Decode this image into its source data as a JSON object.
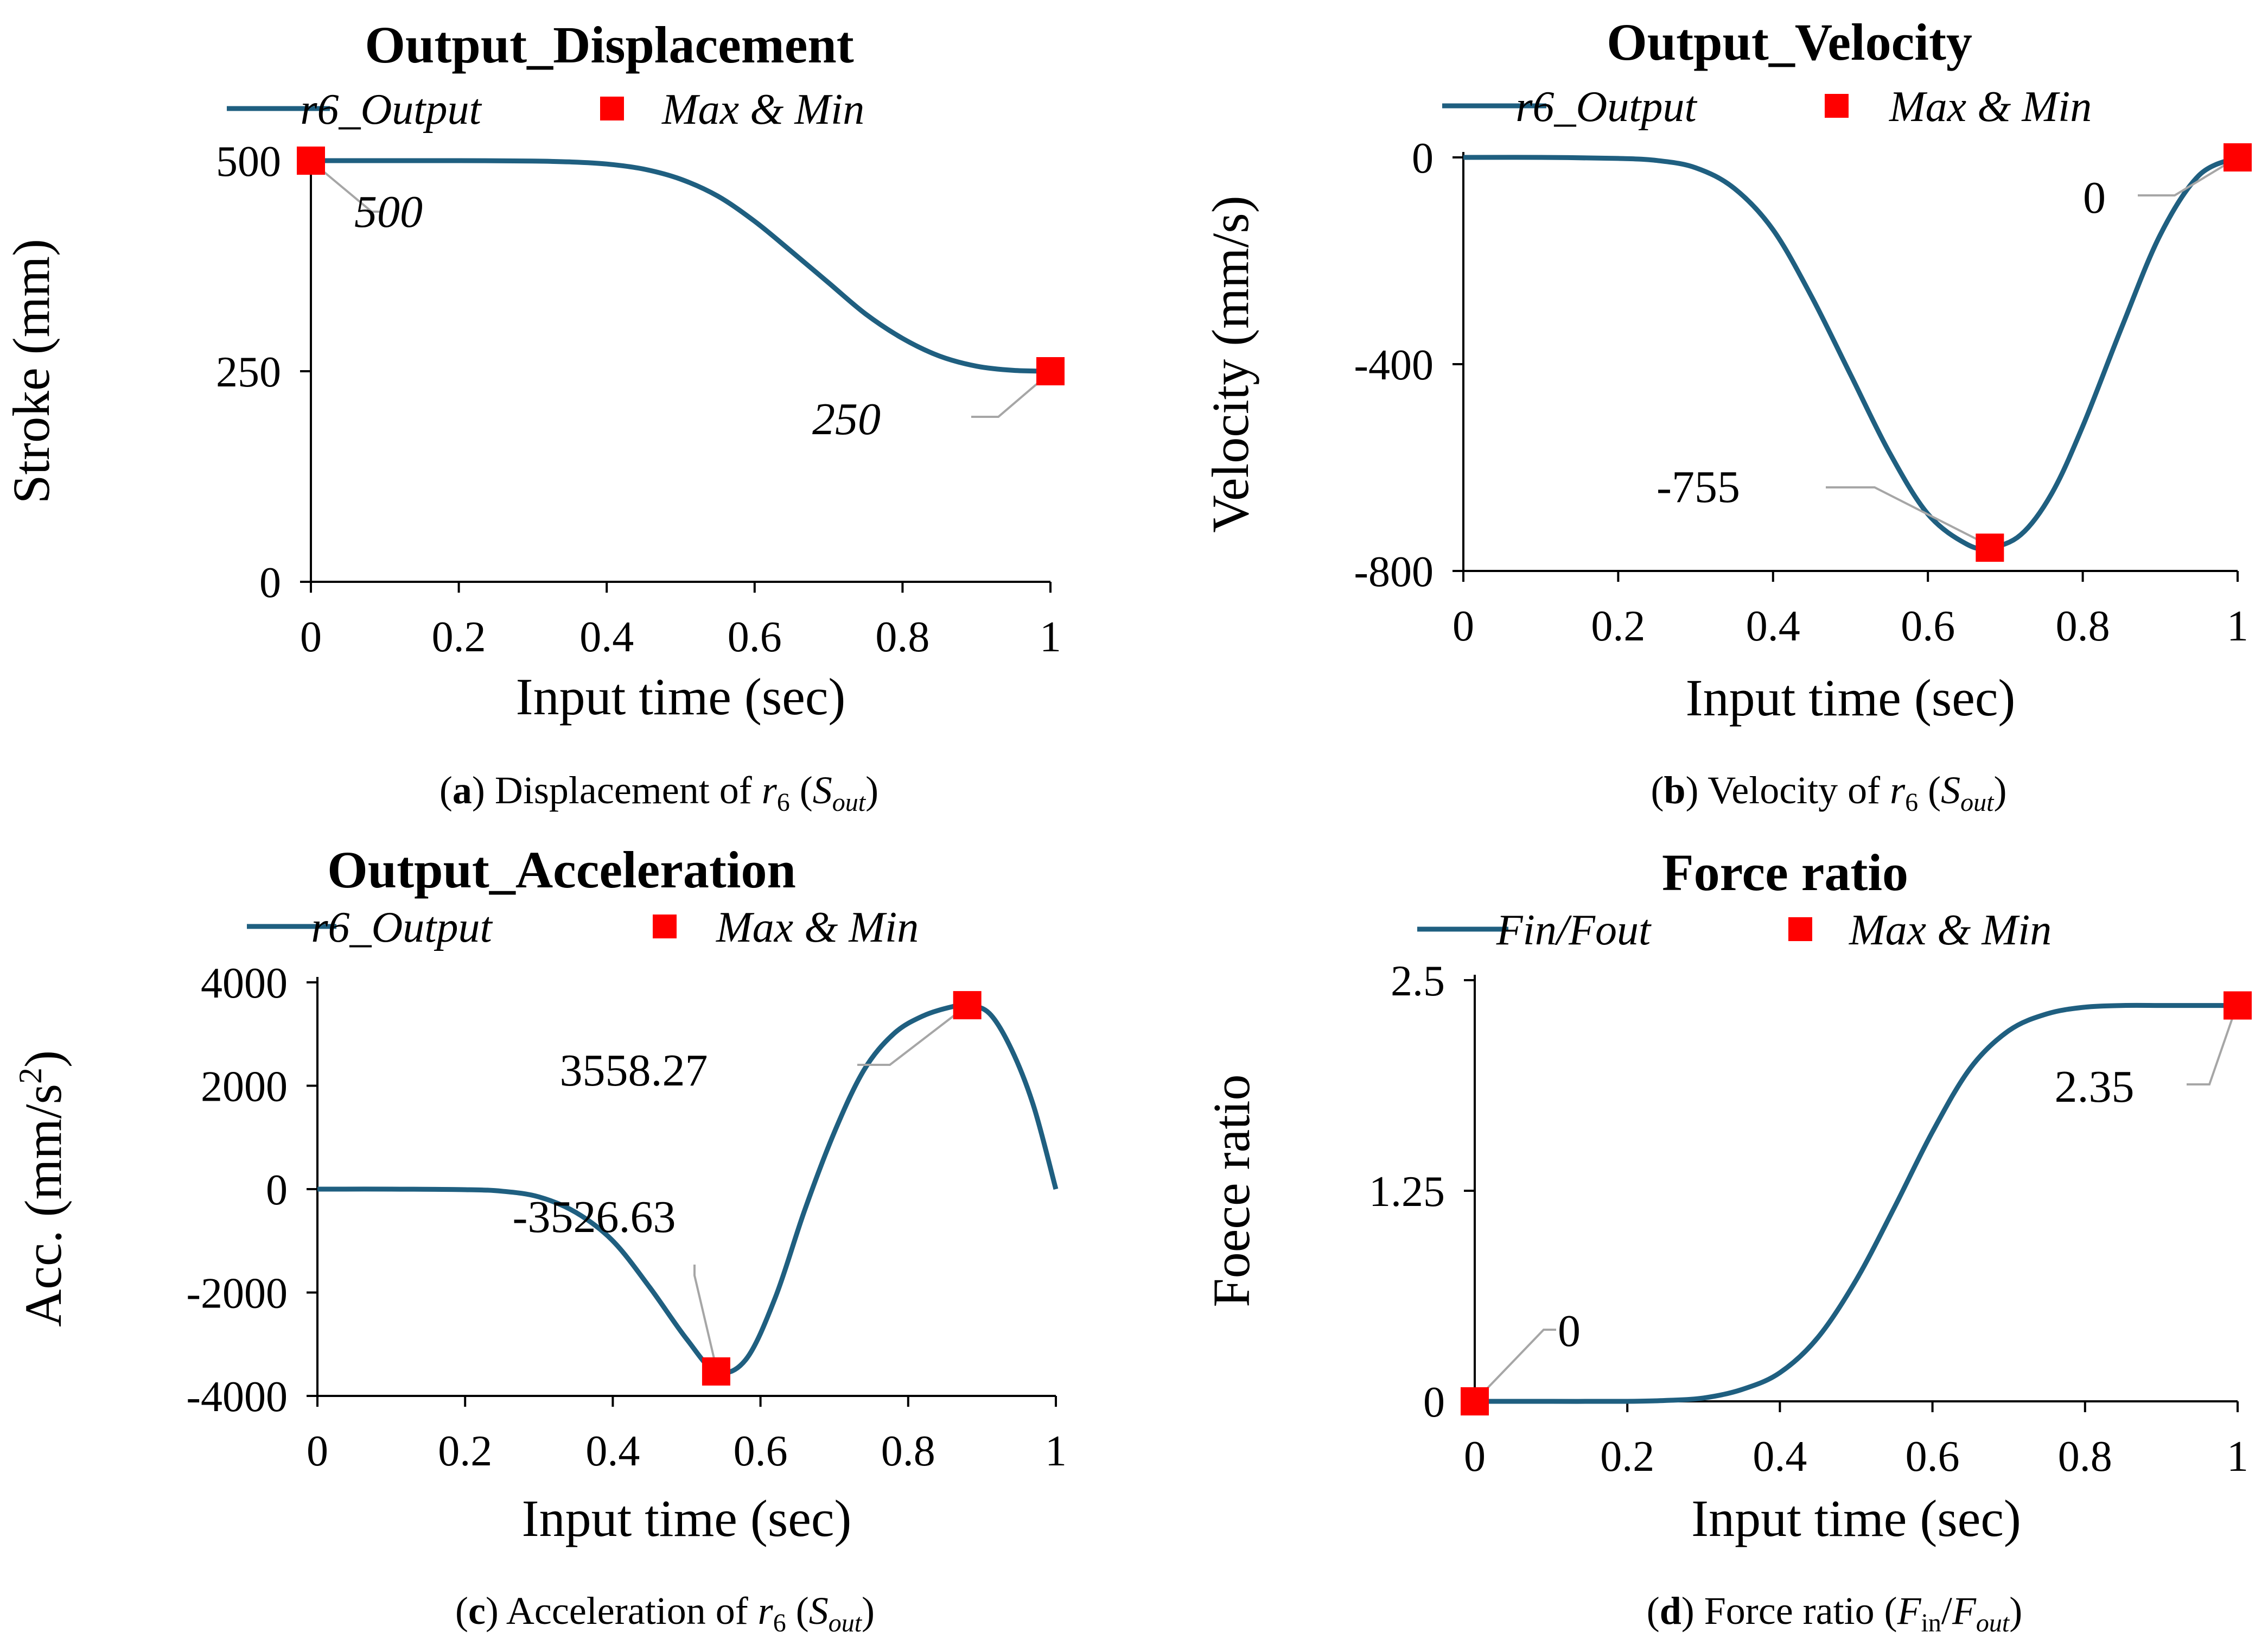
{
  "chart_data": [
    {
      "id": "a",
      "type": "line",
      "title": "Output_Displacement",
      "xlabel": "Input time (sec)",
      "ylabel": "Stroke (mm)",
      "xlim": [
        0,
        1
      ],
      "ylim": [
        0,
        500
      ],
      "xticks": [
        0,
        0.2,
        0.4,
        0.6,
        0.8,
        1
      ],
      "xtick_labels": [
        "0",
        "0.2",
        "0.4",
        "0.6",
        "0.8",
        "1"
      ],
      "yticks": [
        0,
        250,
        500
      ],
      "ytick_labels": [
        "0",
        "250",
        "500"
      ],
      "legend": [
        "r6_Output",
        "Max & Min"
      ],
      "series": [
        {
          "name": "r6_Output",
          "x": [
            0,
            0.1,
            0.2,
            0.3,
            0.35,
            0.4,
            0.45,
            0.5,
            0.55,
            0.6,
            0.65,
            0.7,
            0.75,
            0.8,
            0.85,
            0.9,
            0.95,
            1.0
          ],
          "values": [
            500,
            500,
            500,
            499.5,
            498.5,
            496,
            490,
            478,
            458,
            428,
            392,
            355,
            318,
            289,
            268,
            256,
            251,
            250
          ]
        }
      ],
      "markers": [
        {
          "x": 0,
          "y": 500,
          "label": "500"
        },
        {
          "x": 1,
          "y": 250,
          "label": "250"
        }
      ],
      "caption": {
        "letter": "a",
        "text": " Displacement of ",
        "var": "r",
        "sub": "6",
        "paren": "S",
        "paren_sub": "out"
      }
    },
    {
      "id": "b",
      "type": "line",
      "title": "Output_Velocity",
      "xlabel": "Input time (sec)",
      "ylabel": "Velocity (mm/s)",
      "xlim": [
        0,
        1
      ],
      "ylim": [
        -800,
        0
      ],
      "xticks": [
        0,
        0.2,
        0.4,
        0.6,
        0.8,
        1
      ],
      "xtick_labels": [
        "0",
        "0.2",
        "0.4",
        "0.6",
        "0.8",
        "1"
      ],
      "yticks": [
        -800,
        -400,
        0
      ],
      "ytick_labels": [
        "-800",
        "-400",
        "0"
      ],
      "legend": [
        "r6_Output",
        "Max & Min"
      ],
      "series": [
        {
          "name": "r6_Output",
          "x": [
            0,
            0.1,
            0.2,
            0.25,
            0.3,
            0.35,
            0.4,
            0.45,
            0.5,
            0.55,
            0.6,
            0.65,
            0.68,
            0.72,
            0.76,
            0.8,
            0.85,
            0.9,
            0.95,
            1.0
          ],
          "values": [
            0,
            0,
            -2,
            -6,
            -20,
            -60,
            -140,
            -270,
            -420,
            -570,
            -690,
            -748,
            -755,
            -730,
            -650,
            -520,
            -330,
            -150,
            -35,
            0
          ]
        }
      ],
      "markers": [
        {
          "x": 0.68,
          "y": -755,
          "label": "-755"
        },
        {
          "x": 1,
          "y": 0,
          "label": "0"
        }
      ],
      "caption": {
        "letter": "b",
        "text": " Velocity of ",
        "var": "r",
        "sub": "6",
        "paren": "S",
        "paren_sub": "out"
      }
    },
    {
      "id": "c",
      "type": "line",
      "title": "Output_Acceleration",
      "xlabel": "Input time (sec)",
      "ylabel": "Acc. (mm/s",
      "ylabel_sup": "2",
      "ylabel_end": ")",
      "xlim": [
        0,
        1
      ],
      "ylim": [
        -4000,
        4000
      ],
      "xticks": [
        0,
        0.2,
        0.4,
        0.6,
        0.8,
        1
      ],
      "xtick_labels": [
        "0",
        "0.2",
        "0.4",
        "0.6",
        "0.8",
        "1"
      ],
      "yticks": [
        -4000,
        -2000,
        0,
        2000,
        4000
      ],
      "ytick_labels": [
        "-4000",
        "-2000",
        "0",
        "2000",
        "4000"
      ],
      "legend": [
        "r6_Output",
        "Max & Min"
      ],
      "series": [
        {
          "name": "r6_Output",
          "x": [
            0,
            0.1,
            0.2,
            0.25,
            0.3,
            0.35,
            0.4,
            0.45,
            0.5,
            0.54,
            0.58,
            0.62,
            0.66,
            0.7,
            0.74,
            0.78,
            0.82,
            0.86,
            0.88,
            0.91,
            0.94,
            0.97,
            1.0
          ],
          "values": [
            0,
            0,
            -10,
            -40,
            -150,
            -450,
            -1000,
            -1900,
            -2900,
            -3526.63,
            -3300,
            -2100,
            -400,
            1100,
            2300,
            3000,
            3350,
            3530,
            3558.27,
            3400,
            2700,
            1600,
            0
          ]
        }
      ],
      "markers": [
        {
          "x": 0.54,
          "y": -3526.63,
          "label": "-3526.63"
        },
        {
          "x": 0.88,
          "y": 3558.27,
          "label": "3558.27"
        }
      ],
      "caption": {
        "letter": "c",
        "text": " Acceleration of ",
        "var": "r",
        "sub": "6",
        "paren": "S",
        "paren_sub": "out"
      }
    },
    {
      "id": "d",
      "type": "line",
      "title": "Force ratio",
      "xlabel": "Input time (sec)",
      "ylabel": "Foece  ratio",
      "xlim": [
        0,
        1
      ],
      "ylim": [
        0,
        2.5
      ],
      "xticks": [
        0,
        0.2,
        0.4,
        0.6,
        0.8,
        1
      ],
      "xtick_labels": [
        "0",
        "0.2",
        "0.4",
        "0.6",
        "0.8",
        "1"
      ],
      "yticks": [
        0,
        1.25,
        2.5
      ],
      "ytick_labels": [
        "0",
        "1.25",
        "2.5"
      ],
      "legend": [
        "Fin/Fout",
        "Max & Min"
      ],
      "series": [
        {
          "name": "Fin/Fout",
          "x": [
            0,
            0.1,
            0.2,
            0.25,
            0.3,
            0.35,
            0.4,
            0.45,
            0.5,
            0.55,
            0.6,
            0.65,
            0.7,
            0.75,
            0.8,
            0.85,
            0.9,
            0.95,
            1.0
          ],
          "values": [
            0,
            0,
            0,
            0.005,
            0.02,
            0.07,
            0.17,
            0.38,
            0.72,
            1.15,
            1.6,
            1.98,
            2.2,
            2.3,
            2.34,
            2.35,
            2.35,
            2.35,
            2.35
          ]
        }
      ],
      "markers": [
        {
          "x": 0,
          "y": 0,
          "label": "0"
        },
        {
          "x": 1,
          "y": 2.35,
          "label": "2.35"
        }
      ],
      "caption": {
        "letter": "d",
        "text": " Force ratio (",
        "var": "F",
        "sub": "in",
        "mid": "/",
        "var2": "F",
        "sub2": "out",
        "end": ")"
      }
    }
  ]
}
